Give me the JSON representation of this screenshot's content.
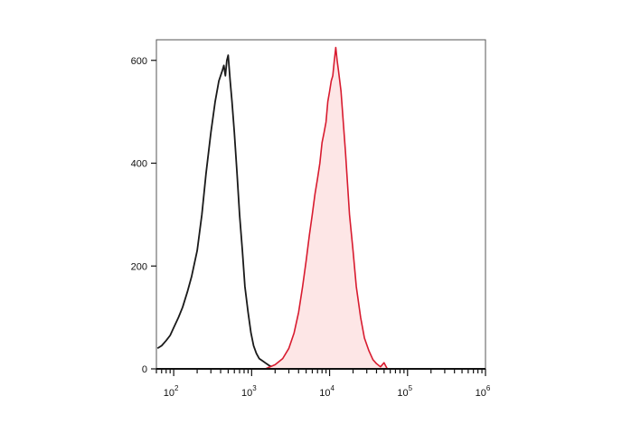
{
  "chart_data": {
    "type": "area",
    "x_scale": "log",
    "xlim": [
      60,
      1000000
    ],
    "ylim": [
      0,
      640
    ],
    "grid": false,
    "legend": "none",
    "x_ticks": [
      {
        "value": 100,
        "base": "10",
        "exp": "2"
      },
      {
        "value": 1000,
        "base": "10",
        "exp": "3"
      },
      {
        "value": 10000,
        "base": "10",
        "exp": "4"
      },
      {
        "value": 100000,
        "base": "10",
        "exp": "5"
      },
      {
        "value": 1000000,
        "base": "10",
        "exp": "6"
      }
    ],
    "y_ticks": [
      0,
      200,
      400,
      600
    ],
    "series": [
      {
        "style": "line",
        "color": "#1a1a1a",
        "fill": "none",
        "x": [
          62,
          70,
          80,
          90,
          100,
          115,
          130,
          150,
          170,
          200,
          230,
          260,
          300,
          340,
          380,
          420,
          440,
          460,
          480,
          500,
          530,
          560,
          600,
          650,
          700,
          760,
          820,
          900,
          980,
          1060,
          1150,
          1250,
          1400,
          1550,
          1700,
          1900,
          2100
        ],
        "y": [
          40,
          45,
          55,
          65,
          80,
          100,
          120,
          150,
          180,
          230,
          300,
          380,
          460,
          520,
          560,
          580,
          590,
          570,
          600,
          610,
          560,
          520,
          460,
          380,
          300,
          230,
          160,
          110,
          70,
          45,
          30,
          20,
          15,
          10,
          6,
          3,
          0
        ]
      },
      {
        "style": "area",
        "color": "#d81b2f",
        "fill": "#fde6e6",
        "x": [
          1500,
          2000,
          2500,
          3000,
          3500,
          4000,
          4500,
          5000,
          5500,
          6000,
          6500,
          7000,
          7500,
          8000,
          8500,
          9000,
          9500,
          10000,
          10500,
          11000,
          11500,
          12000,
          12500,
          13000,
          14000,
          15000,
          16000,
          17000,
          18000,
          20000,
          22000,
          25000,
          28000,
          32000,
          36000,
          40000,
          45000,
          50000,
          55000
        ],
        "y": [
          0,
          8,
          20,
          40,
          70,
          110,
          160,
          210,
          260,
          300,
          340,
          370,
          400,
          440,
          460,
          480,
          520,
          540,
          560,
          570,
          600,
          625,
          600,
          580,
          540,
          480,
          420,
          360,
          300,
          230,
          160,
          100,
          60,
          35,
          18,
          10,
          4,
          12,
          0
        ]
      }
    ]
  }
}
